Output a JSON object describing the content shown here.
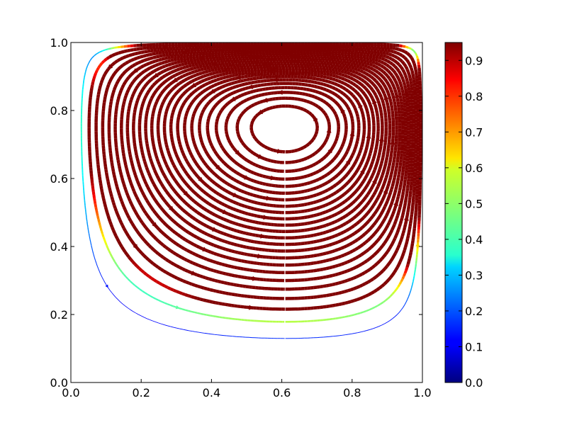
{
  "chart_data": {
    "type": "streamplot",
    "title": "",
    "xlabel": "",
    "ylabel": "",
    "xlim": [
      0.0,
      1.0
    ],
    "ylim": [
      0.0,
      1.0
    ],
    "xticks": [
      "0.0",
      "0.2",
      "0.4",
      "0.6",
      "0.8",
      "1.0"
    ],
    "yticks": [
      "0.0",
      "0.2",
      "0.4",
      "0.6",
      "0.8",
      "1.0"
    ],
    "grid": false,
    "colormap": "jet",
    "colorbar": {
      "range": [
        0.0,
        0.95
      ],
      "ticks": [
        "0.0",
        "0.1",
        "0.2",
        "0.3",
        "0.4",
        "0.5",
        "0.6",
        "0.7",
        "0.8",
        "0.9"
      ],
      "placement": "right"
    },
    "vortex_center": [
      0.61,
      0.75
    ],
    "lid_speed_max": 0.95,
    "flow_direction": "clockwise"
  }
}
